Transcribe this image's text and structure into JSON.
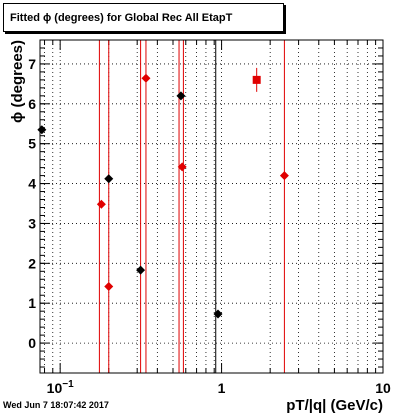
{
  "title": "Fitted ϕ (degrees) for Global Rec All EtapT",
  "timestamp": "Wed Jun  7 18:07:42 2017",
  "chart_data": {
    "type": "scatter",
    "title": "Fitted ϕ (degrees) for Global Rec All EtapT",
    "xlabel": "pT/|q| (GeV/c)",
    "ylabel": "ϕ (degrees)",
    "xscale": "log",
    "xlim": [
      0.075,
      10
    ],
    "ylim": [
      -0.75,
      7.6
    ],
    "grid": true,
    "x_ticks": [
      {
        "value": 0.1,
        "base": "10",
        "exp": "−1"
      },
      {
        "value": 1,
        "base": "1",
        "exp": ""
      },
      {
        "value": 10,
        "base": "10",
        "exp": ""
      }
    ],
    "y_ticks": [
      "0",
      "1",
      "2",
      "3",
      "4",
      "5",
      "6",
      "7"
    ],
    "vertical_lines": [
      {
        "x": 0.175,
        "color": "#e00000"
      },
      {
        "x": 0.2,
        "color": "#e00000"
      },
      {
        "x": 0.315,
        "color": "#e00000"
      },
      {
        "x": 0.34,
        "color": "#e00000"
      },
      {
        "x": 0.545,
        "color": "#e00000"
      },
      {
        "x": 0.58,
        "color": "#e00000"
      },
      {
        "x": 0.92,
        "color": "#000000"
      },
      {
        "x": 2.45,
        "color": "#e00000"
      }
    ],
    "series": [
      {
        "color": "#000000",
        "marker": "diamond",
        "points": [
          {
            "x": 0.077,
            "y": 5.35
          },
          {
            "x": 0.2,
            "y": 4.12
          },
          {
            "x": 0.315,
            "y": 1.83
          },
          {
            "x": 0.56,
            "y": 6.2
          },
          {
            "x": 0.95,
            "y": 0.73
          }
        ]
      },
      {
        "color": "#e00000",
        "marker": "diamond",
        "points": [
          {
            "x": 0.18,
            "y": 3.48
          },
          {
            "x": 0.2,
            "y": 1.42
          },
          {
            "x": 0.34,
            "y": 6.64
          },
          {
            "x": 0.57,
            "y": 4.42
          },
          {
            "x": 2.45,
            "y": 4.2
          }
        ]
      },
      {
        "color": "#e00000",
        "marker": "square",
        "points": [
          {
            "x": 1.65,
            "y": 6.6,
            "err": 0.3
          }
        ]
      }
    ]
  }
}
